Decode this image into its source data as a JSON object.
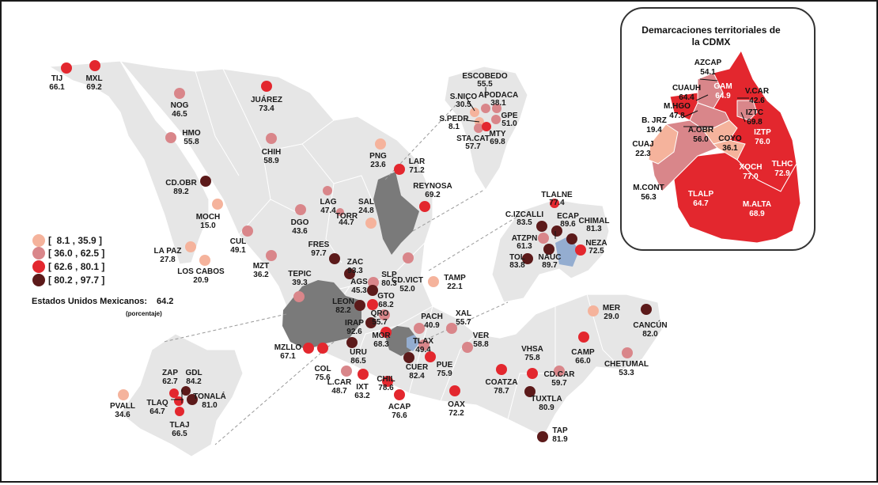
{
  "title_national": "Estados Unidos Mexicanos:",
  "national_value": "64.2",
  "unit_note": "(porcentaje)",
  "colors": {
    "c1": "#f5b39c",
    "c2": "#d9868a",
    "c3": "#e3272e",
    "c4": "#5c1a1a",
    "land": "#e6e6e6",
    "grey": "#7a7a7a",
    "blue": "#94add0"
  },
  "legend": [
    {
      "label": "[  8.1 , 35.9 ]",
      "color": "#f5b39c"
    },
    {
      "label": "[ 36.0 , 62.5 ]",
      "color": "#d9868a"
    },
    {
      "label": "[ 62.6 , 80.1 ]",
      "color": "#e3272e"
    },
    {
      "label": "[ 80.2 , 97.7 ]",
      "color": "#5c1a1a"
    }
  ],
  "cities": [
    {
      "name": "TIJ",
      "value": "66.1",
      "cls": 3
    },
    {
      "name": "MXL",
      "value": "69.2",
      "cls": 3
    },
    {
      "name": "NOG",
      "value": "46.5",
      "cls": 2
    },
    {
      "name": "JUÁREZ",
      "value": "73.4",
      "cls": 3
    },
    {
      "name": "HMO",
      "value": "55.8",
      "cls": 2
    },
    {
      "name": "CHIH",
      "value": "58.9",
      "cls": 2
    },
    {
      "name": "CD.OBR",
      "value": "89.2",
      "cls": 4
    },
    {
      "name": "MOCH",
      "value": "15.0",
      "cls": 1
    },
    {
      "name": "LA PAZ",
      "value": "27.8",
      "cls": 1
    },
    {
      "name": "LOS CABOS",
      "value": "20.9",
      "cls": 1
    },
    {
      "name": "CUL",
      "value": "49.1",
      "cls": 2
    },
    {
      "name": "MZT",
      "value": "36.2",
      "cls": 2
    },
    {
      "name": "DGO",
      "value": "43.6",
      "cls": 2
    },
    {
      "name": "LAG",
      "value": "47.4",
      "cls": 2
    },
    {
      "name": "TORR",
      "value": "44.7",
      "cls": 2
    },
    {
      "name": "SAL",
      "value": "24.8",
      "cls": 1
    },
    {
      "name": "PNG",
      "value": "23.6",
      "cls": 1
    },
    {
      "name": "LAR",
      "value": "71.2",
      "cls": 3
    },
    {
      "name": "REYNOSA",
      "value": "69.2",
      "cls": 3
    },
    {
      "name": "CD.VICT",
      "value": "52.0",
      "cls": 2
    },
    {
      "name": "TAMP",
      "value": "22.1",
      "cls": 1
    },
    {
      "name": "TEPIC",
      "value": "39.3",
      "cls": 2
    },
    {
      "name": "FRES",
      "value": "97.7",
      "cls": 4
    },
    {
      "name": "ZAC",
      "value": "93.3",
      "cls": 4
    },
    {
      "name": "AGS",
      "value": "45.3",
      "cls": 2
    },
    {
      "name": "SLP",
      "value": "80.3",
      "cls": 4
    },
    {
      "name": "LEON",
      "value": "82.2",
      "cls": 4
    },
    {
      "name": "GTO",
      "value": "68.2",
      "cls": 3
    },
    {
      "name": "IRAP",
      "value": "92.6",
      "cls": 4
    },
    {
      "name": "QRO",
      "value": "55.7",
      "cls": 2
    },
    {
      "name": "PACH",
      "value": "40.9",
      "cls": 2
    },
    {
      "name": "XAL",
      "value": "55.7",
      "cls": 2
    },
    {
      "name": "VER",
      "value": "58.8",
      "cls": 2
    },
    {
      "name": "MOR",
      "value": "68.3",
      "cls": 3
    },
    {
      "name": "URU",
      "value": "86.5",
      "cls": 4
    },
    {
      "name": "TLAX",
      "value": "49.4",
      "cls": 2
    },
    {
      "name": "CUER",
      "value": "82.4",
      "cls": 4
    },
    {
      "name": "PUE",
      "value": "75.9",
      "cls": 3
    },
    {
      "name": "MZLLO",
      "value": "67.1",
      "cls": 3
    },
    {
      "name": "COL",
      "value": "75.6",
      "cls": 3
    },
    {
      "name": "L.CAR",
      "value": "48.7",
      "cls": 2
    },
    {
      "name": "IXT",
      "value": "63.2",
      "cls": 3
    },
    {
      "name": "CHIL",
      "value": "78.6",
      "cls": 3
    },
    {
      "name": "ACAP",
      "value": "76.6",
      "cls": 3
    },
    {
      "name": "OAX",
      "value": "72.2",
      "cls": 3
    },
    {
      "name": "COATZA",
      "value": "78.7",
      "cls": 3
    },
    {
      "name": "VHSA",
      "value": "75.8",
      "cls": 3
    },
    {
      "name": "CAMP",
      "value": "66.0",
      "cls": 3
    },
    {
      "name": "CD.CAR",
      "value": "59.7",
      "cls": 2
    },
    {
      "name": "MER",
      "value": "29.0",
      "cls": 1
    },
    {
      "name": "CANCÚN",
      "value": "82.0",
      "cls": 4
    },
    {
      "name": "CHETUMAL",
      "value": "53.3",
      "cls": 2
    },
    {
      "name": "TUXTLA",
      "value": "80.9",
      "cls": 4
    },
    {
      "name": "TAP",
      "value": "81.9",
      "cls": 4
    }
  ],
  "monterrey_inset": [
    {
      "name": "ESCOBEDO",
      "value": "55.5",
      "cls": 2
    },
    {
      "name": "S.NICO",
      "value": "30.5",
      "cls": 1
    },
    {
      "name": "APODACA",
      "value": "38.1",
      "cls": 2
    },
    {
      "name": "S.PEDR",
      "value": "8.1",
      "cls": 1
    },
    {
      "name": "GPE",
      "value": "51.0",
      "cls": 2
    },
    {
      "name": "STA.CAT",
      "value": "57.7",
      "cls": 2
    },
    {
      "name": "MTY",
      "value": "69.8",
      "cls": 3
    }
  ],
  "valle_mexico_inset": [
    {
      "name": "TLALNE",
      "value": "77.4",
      "cls": 3
    },
    {
      "name": "C.IZCALLI",
      "value": "83.5",
      "cls": 4
    },
    {
      "name": "ECAP",
      "value": "89.6",
      "cls": 4
    },
    {
      "name": "CHIMAL",
      "value": "81.3",
      "cls": 4
    },
    {
      "name": "ATZPN",
      "value": "61.3",
      "cls": 2
    },
    {
      "name": "NEZA",
      "value": "72.5",
      "cls": 3
    },
    {
      "name": "TOL",
      "value": "83.8",
      "cls": 4
    },
    {
      "name": "NAUC",
      "value": "89.7",
      "cls": 4
    }
  ],
  "guadalajara_inset": [
    {
      "name": "ZAP",
      "value": "62.7",
      "cls": 3
    },
    {
      "name": "GDL",
      "value": "84.2",
      "cls": 4
    },
    {
      "name": "TONALÁ",
      "value": "81.0",
      "cls": 4
    },
    {
      "name": "PVALL",
      "value": "34.6",
      "cls": 1
    },
    {
      "name": "TLAQ",
      "value": "64.7",
      "cls": 3
    },
    {
      "name": "TLAJ",
      "value": "66.5",
      "cls": 3
    }
  ],
  "cdmx_inset": {
    "title_line1": "Demarcaciones territoriales de",
    "title_line2": "la CDMX",
    "items": [
      {
        "name": "AZCAP",
        "value": "54.1"
      },
      {
        "name": "GAM",
        "value": "64.9"
      },
      {
        "name": "CUAUH",
        "value": "64.4"
      },
      {
        "name": "V.CAR",
        "value": "42.6"
      },
      {
        "name": "M.HGO",
        "value": "47.8"
      },
      {
        "name": "IZTC",
        "value": "69.8"
      },
      {
        "name": "B. JRZ",
        "value": "19.4"
      },
      {
        "name": "A.OBR",
        "value": "56.0"
      },
      {
        "name": "COYO",
        "value": "36.1"
      },
      {
        "name": "IZTP",
        "value": "76.0"
      },
      {
        "name": "CUAJ",
        "value": "22.3"
      },
      {
        "name": "TLHC",
        "value": "72.9"
      },
      {
        "name": "XOCH",
        "value": "77.0"
      },
      {
        "name": "M.CONT",
        "value": "56.3"
      },
      {
        "name": "TLALP",
        "value": "64.7"
      },
      {
        "name": "M.ALTA",
        "value": "68.9"
      }
    ]
  }
}
